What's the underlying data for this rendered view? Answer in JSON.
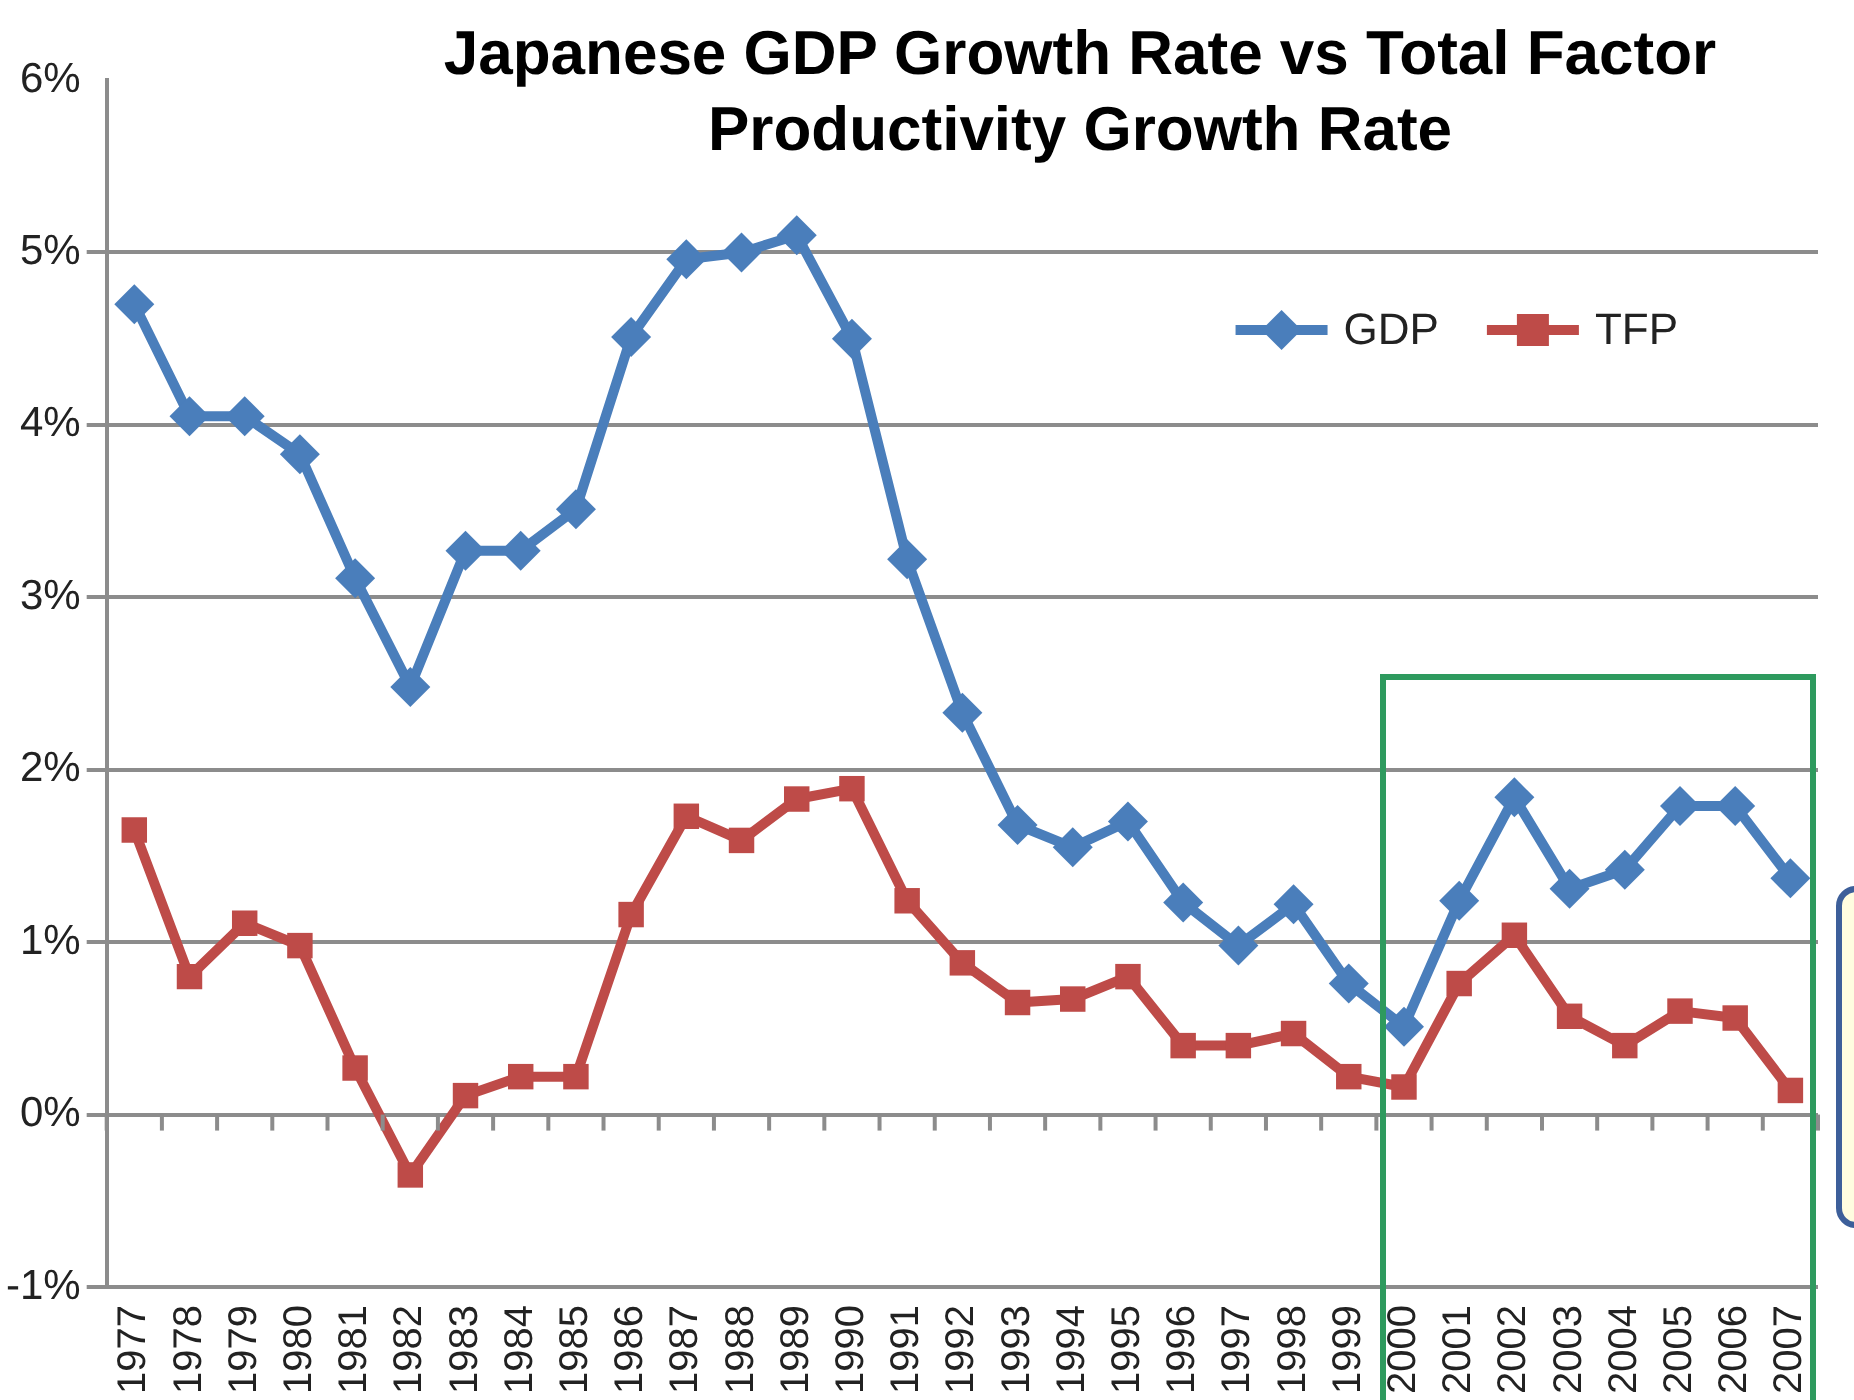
{
  "chart_data": {
    "type": "line",
    "title": "Japanese GDP Growth Rate vs Total Factor Productivity Growth Rate",
    "categories": [
      "1977",
      "1978",
      "1979",
      "1980",
      "1981",
      "1982",
      "1983",
      "1984",
      "1985",
      "1986",
      "1987",
      "1988",
      "1989",
      "1990",
      "1991",
      "1992",
      "1993",
      "1994",
      "1995",
      "1996",
      "1997",
      "1998",
      "1999",
      "2000",
      "2001",
      "2002",
      "2003",
      "2004",
      "2005",
      "2006",
      "2007"
    ],
    "series": [
      {
        "name": "GDP",
        "color": "#4a7ebb",
        "marker": "diamond",
        "values": [
          4.7,
          4.05,
          4.05,
          3.83,
          3.11,
          2.48,
          3.27,
          3.27,
          3.51,
          4.51,
          4.96,
          5.0,
          5.1,
          4.5,
          3.22,
          2.33,
          1.68,
          1.55,
          1.7,
          1.23,
          0.98,
          1.22,
          0.76,
          0.51,
          1.24,
          1.84,
          1.31,
          1.42,
          1.79,
          1.79,
          1.37
        ]
      },
      {
        "name": "TFP",
        "color": "#be4b48",
        "marker": "square",
        "values": [
          1.65,
          0.8,
          1.11,
          0.98,
          0.27,
          -0.35,
          0.11,
          0.22,
          0.22,
          1.16,
          1.73,
          1.59,
          1.83,
          1.89,
          1.24,
          0.88,
          0.65,
          0.67,
          0.8,
          0.4,
          0.4,
          0.47,
          0.22,
          0.16,
          0.76,
          1.04,
          0.57,
          0.4,
          0.6,
          0.56,
          0.14
        ]
      }
    ],
    "ylim": [
      -1,
      6
    ],
    "yticks": [
      {
        "value": -1,
        "label": "-1%"
      },
      {
        "value": 0,
        "label": "0%"
      },
      {
        "value": 1,
        "label": "1%"
      },
      {
        "value": 2,
        "label": "2%"
      },
      {
        "value": 3,
        "label": "3%"
      },
      {
        "value": 4,
        "label": "4%"
      },
      {
        "value": 5,
        "label": "5%"
      },
      {
        "value": 6,
        "label": "6%"
      }
    ],
    "grid": "y",
    "legend": "top right",
    "line_style": "solid"
  }
}
